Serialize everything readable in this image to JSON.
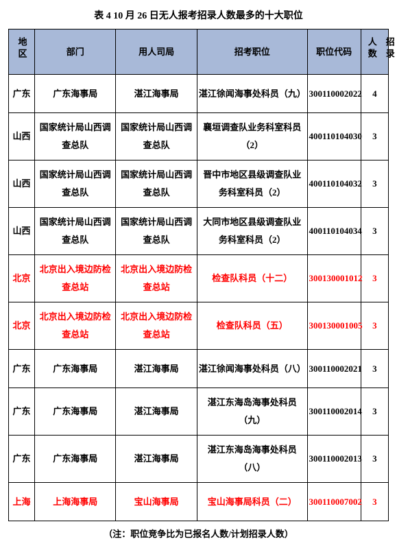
{
  "title": "表 4  10 月 26 日无人报考招录人数最多的十大职位",
  "columns": [
    "地区",
    "部门",
    "用人司局",
    "招考职位",
    "职位代码",
    "招录人数"
  ],
  "rows": [
    {
      "hl": false,
      "region": "广东",
      "dept": "广东海事局",
      "bureau": "湛江海事局",
      "position": "湛江徐闻海事处科员（九）",
      "code": "300110002022",
      "num": "4"
    },
    {
      "hl": false,
      "region": "山西",
      "dept": "国家统计局山西调查总队",
      "bureau": "国家统计局山西调查总队",
      "position": "襄垣调查队业务科室科员（2）",
      "code": "400110104030",
      "num": "3"
    },
    {
      "hl": false,
      "region": "山西",
      "dept": "国家统计局山西调查总队",
      "bureau": "国家统计局山西调查总队",
      "position": "晋中市地区县级调查队业务科室科员（2）",
      "code": "400110104032",
      "num": "3"
    },
    {
      "hl": false,
      "region": "山西",
      "dept": "国家统计局山西调查总队",
      "bureau": "国家统计局山西调查总队",
      "position": "大同市地区县级调查队业务科室科员（2）",
      "code": "400110104034",
      "num": "3"
    },
    {
      "hl": true,
      "region": "北京",
      "dept": "北京出入境边防检查总站",
      "bureau": "北京出入境边防检查总站",
      "position": "检查队科员（十二）",
      "code": "300130001012",
      "num": "3"
    },
    {
      "hl": true,
      "region": "北京",
      "dept": "北京出入境边防检查总站",
      "bureau": "北京出入境边防检查总站",
      "position": "检查队科员（五）",
      "code": "300130001005",
      "num": "3"
    },
    {
      "hl": false,
      "region": "广东",
      "dept": "广东海事局",
      "bureau": "湛江海事局",
      "position": "湛江徐闻海事处科员（八）",
      "code": "300110002021",
      "num": "3"
    },
    {
      "hl": false,
      "region": "广东",
      "dept": "广东海事局",
      "bureau": "湛江海事局",
      "position": "湛江东海岛海事处科员（九）",
      "code": "300110002014",
      "num": "3"
    },
    {
      "hl": false,
      "region": "广东",
      "dept": "广东海事局",
      "bureau": "湛江海事局",
      "position": "湛江东海岛海事处科员（八）",
      "code": "300110002013",
      "num": "3"
    },
    {
      "hl": true,
      "region": "上海",
      "dept": "上海海事局",
      "bureau": "宝山海事局",
      "position": "宝山海事局科员（二）",
      "code": "300110007002",
      "num": "3"
    }
  ],
  "footnote": "（注：职位竞争比为已报名人数/计划招录人数）"
}
